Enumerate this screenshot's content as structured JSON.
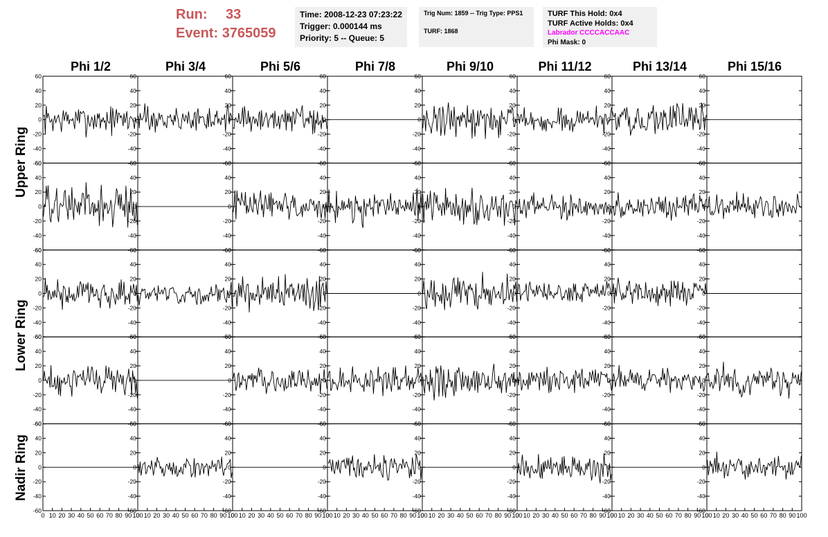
{
  "header": {
    "run_label": "Run:",
    "run_value": "33",
    "event_label": "Event:",
    "event_value": "3765059",
    "time": "Time: 2008-12-23 07:23:22",
    "trigger": "Trigger: 0.000144 ms",
    "priority": "Priority: 5 -- Queue: 5",
    "trig_num": "Trig Num: 1859 -- Trig Type: PPS1",
    "turf": "TURF: 1868",
    "turf_this_hold": "TURF This Hold: 0x4",
    "turf_active_holds": "TURF Active Holds: 0x4",
    "labrador": "Labrador CCCCACCAAC",
    "phi_mask": "Phi Mask: 0"
  },
  "colors": {
    "run_text": "#c8585a",
    "labrador_text": "#ff00ff",
    "box_bg": "#f0f0f0",
    "trace": "#000000"
  },
  "chart_data": {
    "type": "line",
    "columns": [
      "Phi 1/2",
      "Phi 3/4",
      "Phi 5/6",
      "Phi 7/8",
      "Phi 9/10",
      "Phi 11/12",
      "Phi 13/14",
      "Phi 15/16"
    ],
    "row_labels": [
      "Upper Ring",
      "Lower Ring",
      "Nadir Ring"
    ],
    "xlim": [
      0,
      100
    ],
    "ylim": [
      -60,
      60
    ],
    "x_ticks": [
      "0",
      "10",
      "20",
      "30",
      "40",
      "50",
      "60",
      "70",
      "80",
      "90",
      "100"
    ],
    "y_ticks": [
      "60",
      "40",
      "20",
      "0",
      "-20",
      "-40",
      "-60"
    ],
    "samples": 100,
    "panels": [
      [
        {
          "amp": 12
        },
        {
          "amp": 11
        },
        {
          "amp": 11
        },
        {
          "amp": 0
        },
        {
          "amp": 14
        },
        {
          "amp": 10
        },
        {
          "amp": 13
        },
        {
          "amp": 0
        }
      ],
      [
        {
          "amp": 18
        },
        {
          "amp": 0
        },
        {
          "amp": 13
        },
        {
          "amp": 14
        },
        {
          "amp": 15
        },
        {
          "amp": 10
        },
        {
          "amp": 10
        },
        {
          "amp": 12
        }
      ],
      [
        {
          "amp": 13
        },
        {
          "amp": 9
        },
        {
          "amp": 16
        },
        {
          "amp": 0
        },
        {
          "amp": 14
        },
        {
          "amp": 10
        },
        {
          "amp": 11
        },
        {
          "amp": 0
        }
      ],
      [
        {
          "amp": 13
        },
        {
          "amp": 0
        },
        {
          "amp": 11
        },
        {
          "amp": 12
        },
        {
          "amp": 14
        },
        {
          "amp": 10
        },
        {
          "amp": 11
        },
        {
          "amp": 12
        }
      ],
      [
        {
          "amp": 0
        },
        {
          "amp": 8
        },
        {
          "amp": 0
        },
        {
          "amp": 10
        },
        {
          "amp": 0
        },
        {
          "amp": 11
        },
        {
          "amp": 0
        },
        {
          "amp": 10
        }
      ]
    ]
  }
}
